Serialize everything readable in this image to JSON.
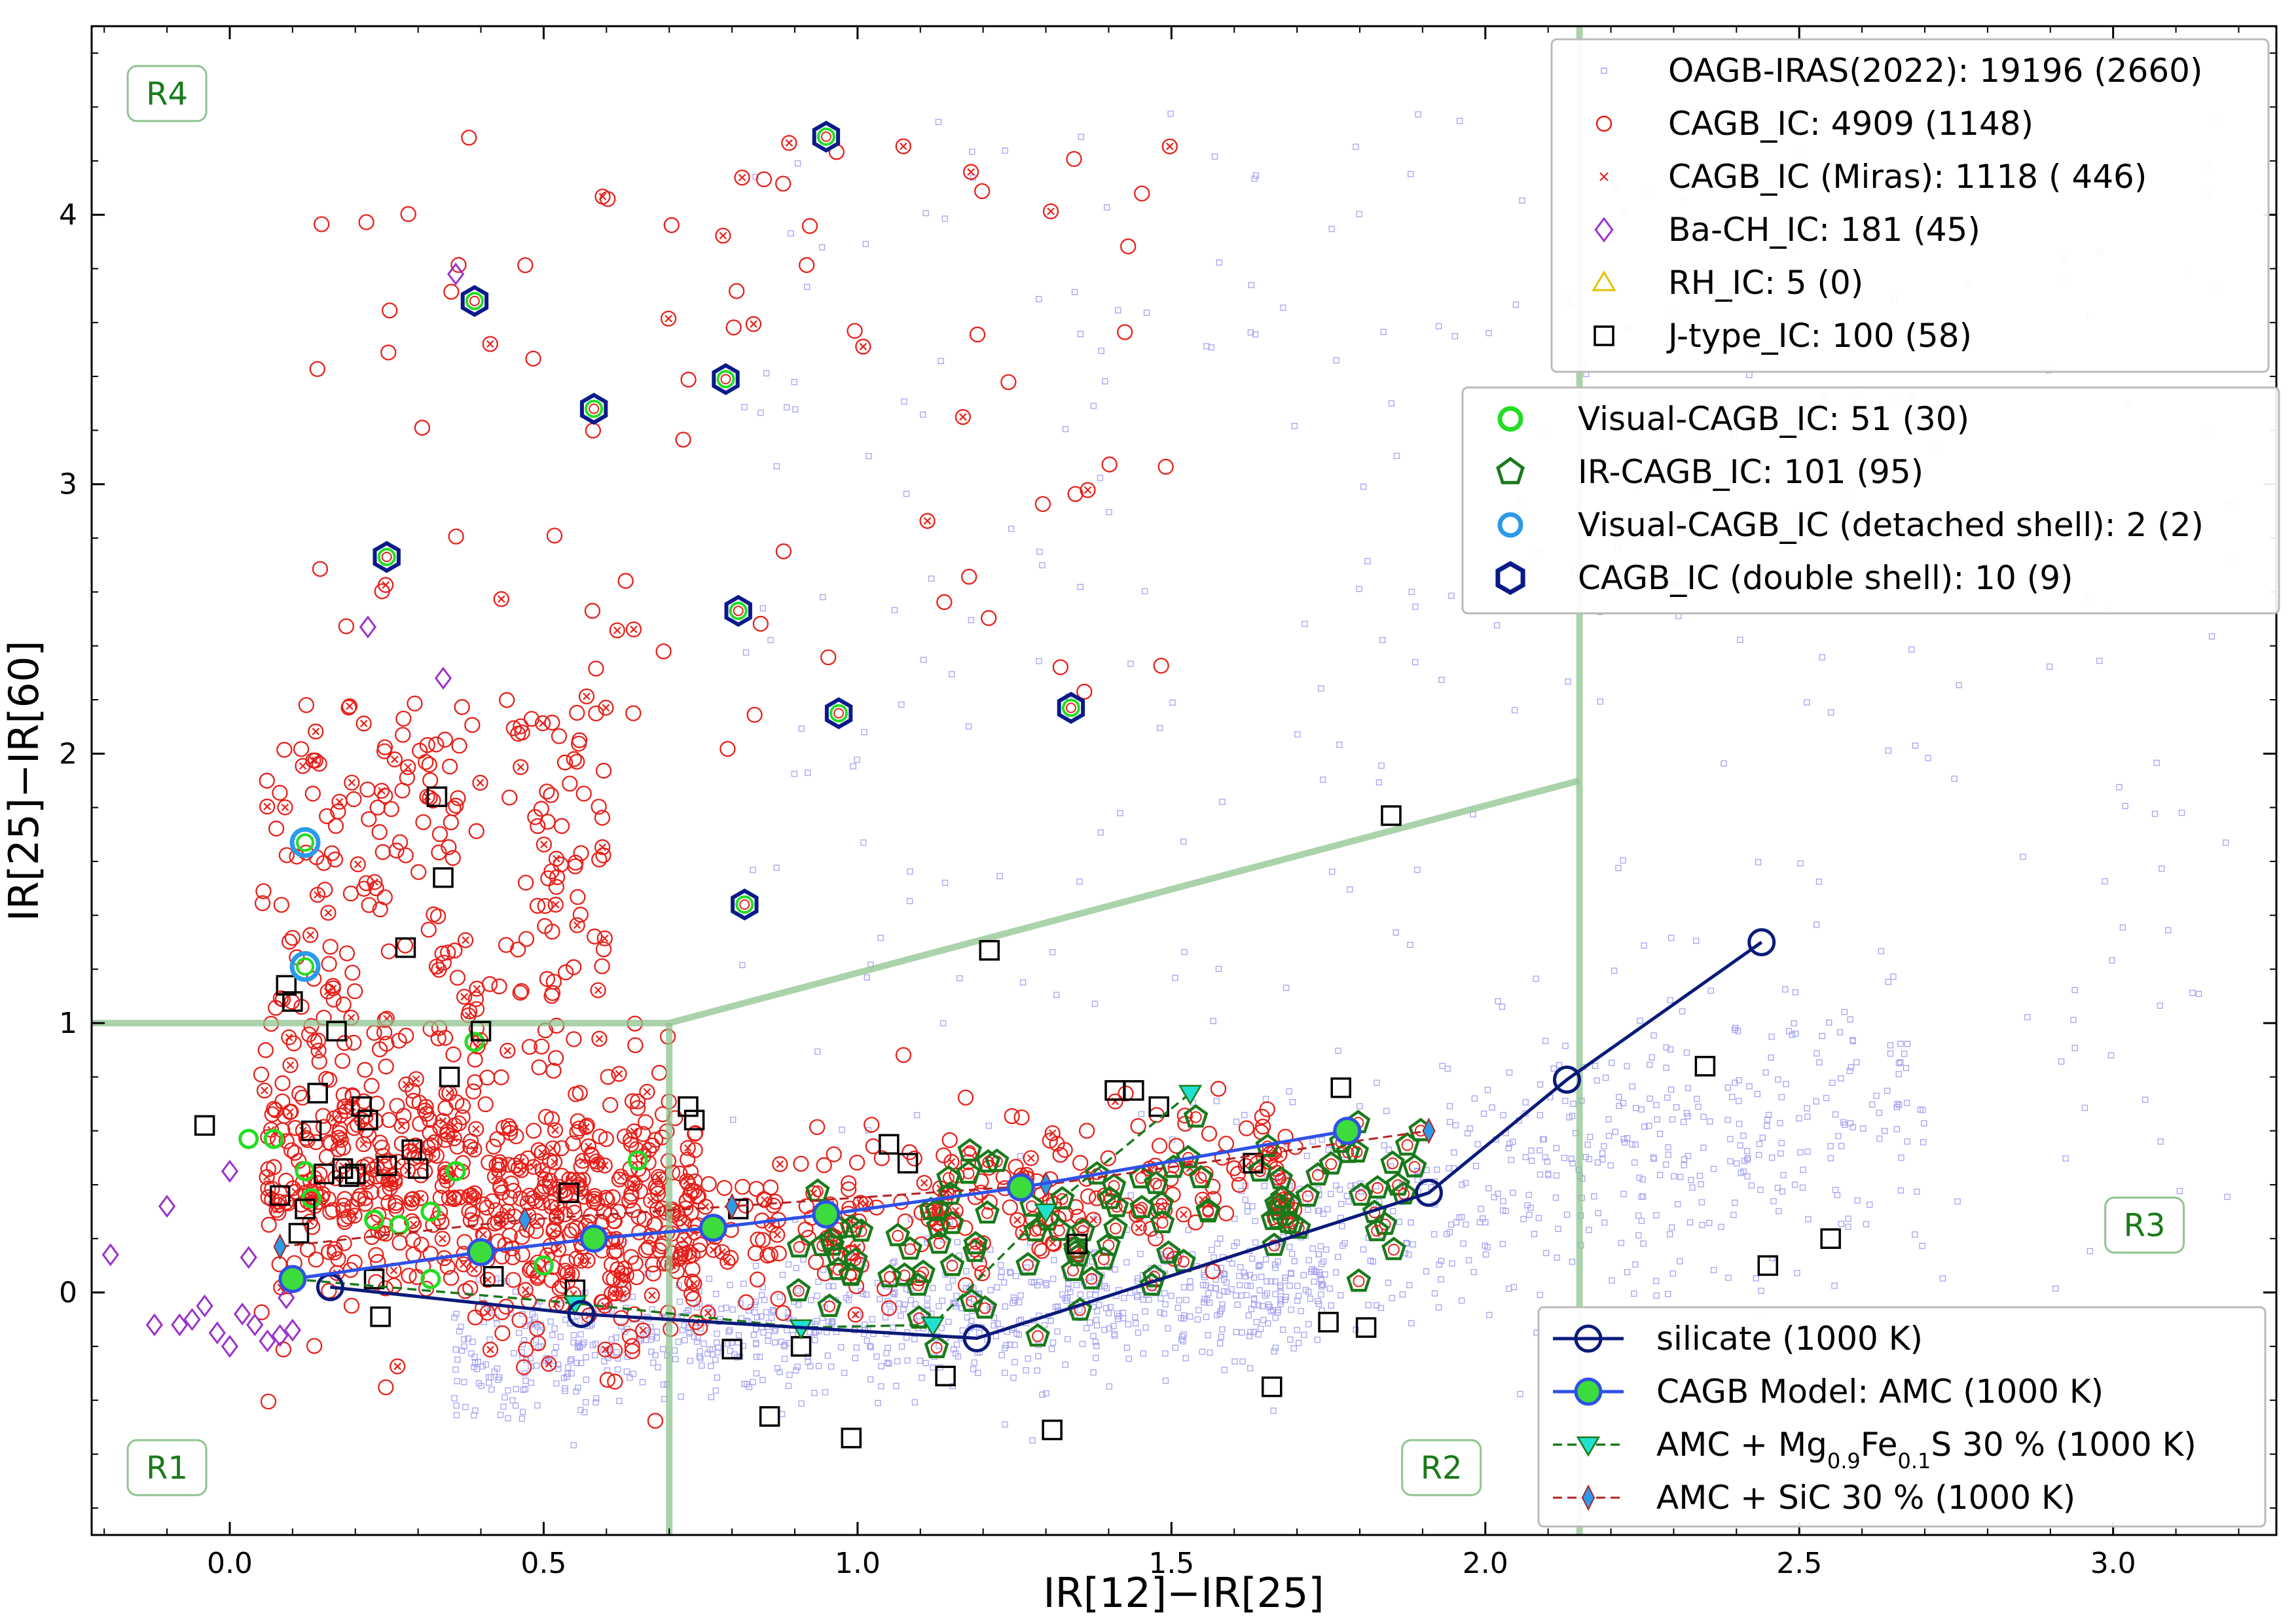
{
  "chart_data": {
    "type": "scatter",
    "xlabel": "IR[12]−IR[25]",
    "ylabel": "IR[25]−IR[60]",
    "xlim": [
      -0.22,
      3.26
    ],
    "ylim": [
      -0.9,
      4.7
    ],
    "xticks": [
      0.0,
      0.5,
      1.0,
      1.5,
      2.0,
      2.5,
      3.0
    ],
    "xtick_labels": [
      "0.0",
      "0.5",
      "1.0",
      "1.5",
      "2.0",
      "2.5",
      "3.0"
    ],
    "yticks": [
      0,
      1,
      2,
      3,
      4
    ],
    "ytick_labels": [
      "0",
      "1",
      "2",
      "3",
      "4"
    ],
    "region_labels": [
      {
        "text": "R4",
        "x": -0.1,
        "y": 4.45
      },
      {
        "text": "R1",
        "x": -0.1,
        "y": -0.65
      },
      {
        "text": "R2",
        "x": 1.93,
        "y": -0.65
      },
      {
        "text": "R3",
        "x": 3.05,
        "y": 0.25
      }
    ],
    "region_boundaries": [
      {
        "name": "R1-R4 boundary",
        "x": [
          -0.22,
          0.7
        ],
        "y": [
          1.0,
          1.0
        ]
      },
      {
        "name": "R1-R2 boundary",
        "x": [
          0.7,
          0.7
        ],
        "y": [
          -0.9,
          1.0
        ]
      },
      {
        "name": "R2-R4 boundary",
        "x": [
          0.7,
          2.15
        ],
        "y": [
          1.0,
          1.9
        ]
      },
      {
        "name": "R2-R3 boundary",
        "x": [
          2.15,
          2.15
        ],
        "y": [
          -0.9,
          4.7
        ]
      }
    ],
    "legend_catalog": [
      {
        "label": "OAGB-IRAS(2022): 19196 (2660)",
        "marker": "small-square",
        "color": "#9a9af0"
      },
      {
        "label": "CAGB_IC: 4909 (1148)",
        "marker": "circle",
        "color": "#e8201a"
      },
      {
        "label": "CAGB_IC (Miras): 1118 ( 446)",
        "marker": "cross",
        "color": "#e8201a"
      },
      {
        "label": "Ba-CH_IC: 181 (45)",
        "marker": "diamond",
        "color": "#9a33cc"
      },
      {
        "label": "RH_IC: 5 (0)",
        "marker": "triangle",
        "color": "#e6c200"
      },
      {
        "label": "J-type_IC: 100 (58)",
        "marker": "square",
        "color": "#000000"
      }
    ],
    "legend_special": [
      {
        "label": "Visual-CAGB_IC: 51 (30)",
        "marker": "circle-thick",
        "color": "#22dd22"
      },
      {
        "label": "IR-CAGB_IC: 101 (95)",
        "marker": "pentagon",
        "color": "#1a7a1a"
      },
      {
        "label": "Visual-CAGB_IC (detached shell): 2 (2)",
        "marker": "circle-thick",
        "color": "#2b9be8"
      },
      {
        "label": "CAGB_IC (double shell): 10 (9)",
        "marker": "hexagon",
        "color": "#0a1a8a"
      }
    ],
    "legend_models": [
      {
        "label": "silicate (1000 K)",
        "style": "silicate"
      },
      {
        "label": "CAGB Model: AMC (1000 K)",
        "style": "amc"
      },
      {
        "label": "AMC + Mg0.9Fe0.1S 30 % (1000 K)",
        "label_parts": {
          "a": "AMC + Mg",
          "sub1": "0.9",
          "b": "Fe",
          "sub2": "0.1",
          "c": "S 30 % (1000 K)"
        },
        "style": "mgs"
      },
      {
        "label": "AMC + SiC 30 % (1000 K)",
        "style": "sic"
      }
    ],
    "series": [
      {
        "name": "silicate (1000 K)",
        "color": "#0a1a7a",
        "x": [
          0.16,
          0.56,
          1.19,
          1.91,
          2.13,
          2.44
        ],
        "y": [
          0.02,
          -0.08,
          -0.17,
          0.37,
          0.79,
          1.3
        ]
      },
      {
        "name": "CAGB Model: AMC (1000 K)",
        "color": "#2f50e8",
        "x": [
          0.1,
          0.4,
          0.58,
          0.77,
          0.95,
          1.26,
          1.78
        ],
        "y": [
          0.05,
          0.15,
          0.2,
          0.24,
          0.29,
          0.39,
          0.6
        ]
      },
      {
        "name": "AMC + Mg0.9Fe0.1S 30 % (1000 K)",
        "color": "#1a7a1a",
        "x": [
          0.1,
          0.55,
          0.91,
          1.12,
          1.3,
          1.53
        ],
        "y": [
          0.05,
          -0.04,
          -0.13,
          -0.12,
          0.3,
          0.74
        ]
      },
      {
        "name": "AMC + SiC 30 % (1000 K)",
        "color": "#b22222",
        "x": [
          0.08,
          0.47,
          0.8,
          1.3,
          1.91
        ],
        "y": [
          0.17,
          0.27,
          0.32,
          0.4,
          0.6
        ]
      },
      {
        "name": "CAGB_IC (double shell)",
        "x": [
          0.95,
          0.39,
          0.58,
          0.79,
          0.25,
          0.81,
          0.97,
          1.34,
          0.82
        ],
        "y": [
          4.29,
          3.68,
          3.28,
          3.39,
          2.73,
          2.53,
          2.15,
          2.17,
          1.44
        ]
      },
      {
        "name": "Visual-CAGB_IC (detached shell)",
        "x": [
          0.12,
          0.12
        ],
        "y": [
          1.67,
          1.21
        ]
      },
      {
        "name": "J-type_IC",
        "x": [
          -0.04,
          0.08,
          0.09,
          0.1,
          0.11,
          0.12,
          0.13,
          0.14,
          0.15,
          0.17,
          0.18,
          0.19,
          0.2,
          0.21,
          0.22,
          0.23,
          0.24,
          0.25,
          0.29,
          0.28,
          0.3,
          0.33,
          0.34,
          0.35,
          0.4,
          0.42,
          0.54,
          0.55,
          0.73,
          0.74,
          0.8,
          0.81,
          0.86,
          0.91,
          0.99,
          1.05,
          1.08,
          1.14,
          1.21,
          1.31,
          1.35,
          1.44,
          1.41,
          1.48,
          1.63,
          1.66,
          1.75,
          1.77,
          1.81,
          1.85,
          2.35,
          2.45,
          2.55
        ],
        "y": [
          0.62,
          0.36,
          1.14,
          1.08,
          0.22,
          0.31,
          0.6,
          0.74,
          0.44,
          0.97,
          0.46,
          0.43,
          0.44,
          0.69,
          0.64,
          0.05,
          -0.09,
          0.47,
          0.53,
          1.28,
          0.46,
          1.84,
          1.54,
          0.8,
          0.97,
          0.06,
          0.37,
          0.01,
          0.69,
          0.64,
          -0.21,
          0.31,
          -0.46,
          -0.2,
          -0.54,
          0.55,
          0.48,
          -0.31,
          1.27,
          -0.51,
          0.18,
          0.75,
          0.75,
          0.69,
          0.48,
          -0.35,
          -0.11,
          0.76,
          -0.13,
          1.77,
          0.84,
          0.1,
          0.2
        ]
      },
      {
        "name": "Ba-CH_IC",
        "x": [
          -0.19,
          -0.08,
          -0.06,
          -0.04,
          -0.02,
          0.0,
          0.02,
          0.04,
          0.06,
          0.08,
          0.1,
          -0.12,
          -0.1,
          0.0,
          0.03,
          0.09,
          0.1,
          0.22,
          0.34,
          0.36
        ],
        "y": [
          0.14,
          -0.12,
          -0.1,
          -0.05,
          -0.15,
          -0.2,
          -0.08,
          -0.12,
          -0.18,
          -0.16,
          -0.14,
          -0.12,
          0.32,
          0.45,
          0.13,
          -0.02,
          0.05,
          2.47,
          2.28,
          3.78
        ]
      }
    ]
  }
}
